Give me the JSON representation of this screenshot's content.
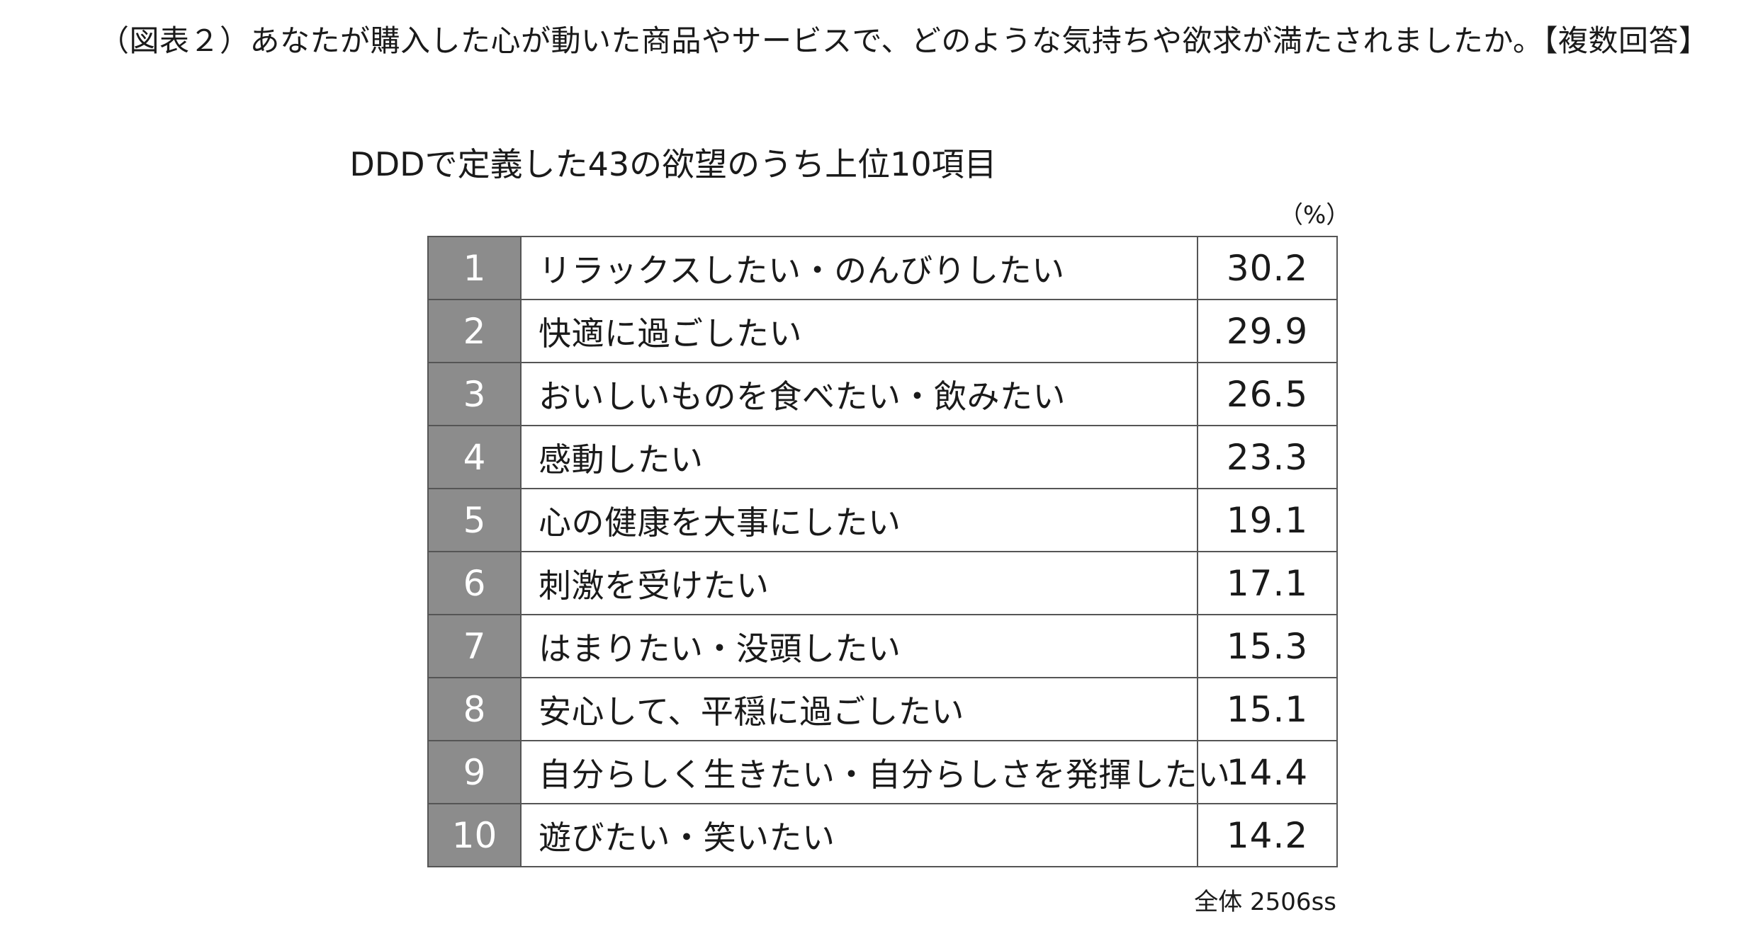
{
  "caption": "（図表２）あなたが購入した心が動いた商品やサービスで、どのような気持ちや欲求が満たされましたか。【複数回答】",
  "chart_data": {
    "type": "table",
    "title": "DDDで定義した43の欲望のうち上位10項目",
    "unit": "（%）",
    "columns": [
      "rank",
      "label",
      "value"
    ],
    "rows": [
      {
        "rank": "1",
        "label": "リラックスしたい・のんびりしたい",
        "value": "30.2"
      },
      {
        "rank": "2",
        "label": "快適に過ごしたい",
        "value": "29.9"
      },
      {
        "rank": "3",
        "label": "おいしいものを食べたい・飲みたい",
        "value": "26.5"
      },
      {
        "rank": "4",
        "label": "感動したい",
        "value": "23.3"
      },
      {
        "rank": "5",
        "label": "心の健康を大事にしたい",
        "value": "19.1"
      },
      {
        "rank": "6",
        "label": "刺激を受けたい",
        "value": "17.1"
      },
      {
        "rank": "7",
        "label": "はまりたい・没頭したい",
        "value": "15.3"
      },
      {
        "rank": "8",
        "label": "安心して、平穏に過ごしたい",
        "value": "15.1"
      },
      {
        "rank": "9",
        "label": "自分らしく生きたい・自分らしさを発揮したい",
        "value": "14.4"
      },
      {
        "rank": "10",
        "label": "遊びたい・笑いたい",
        "value": "14.2"
      }
    ],
    "sample_note": "全体 2506ss"
  },
  "colors": {
    "rank_background": "#8c8c8c",
    "rank_text": "#ffffff",
    "border": "#555555",
    "text": "#1a1a1a"
  }
}
